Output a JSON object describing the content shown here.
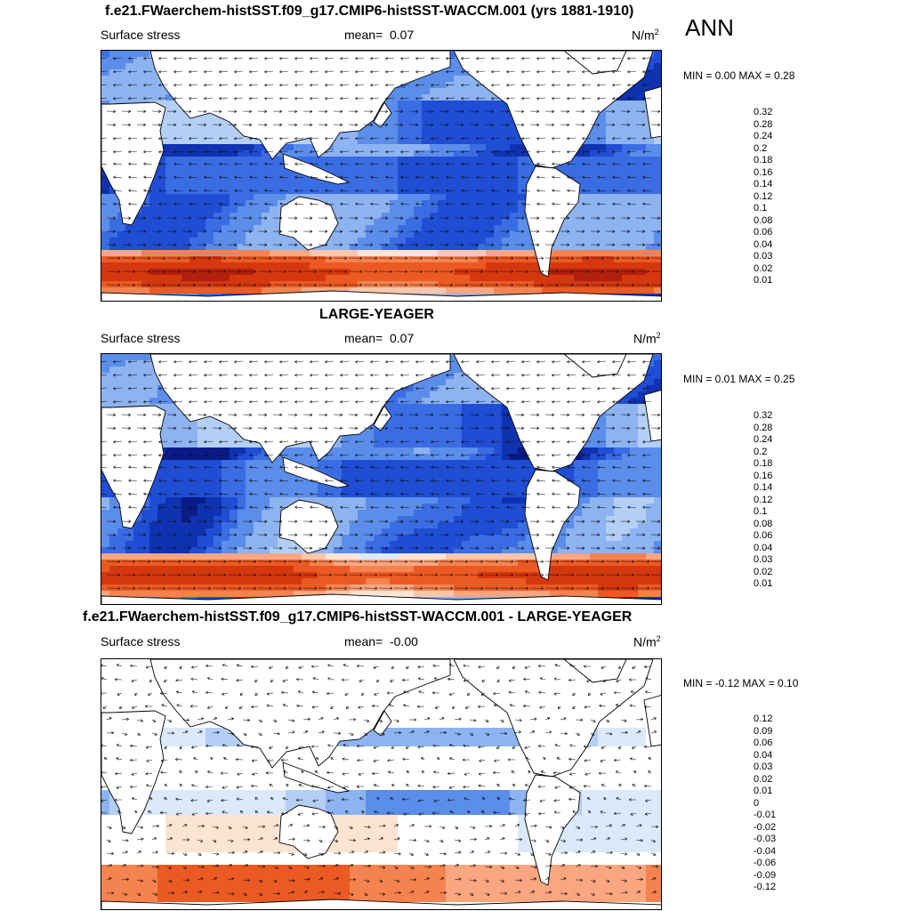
{
  "header": {
    "title": "f.e21.FWaerchem-histSST.f09_g17.CMIP6-histSST-WACCM.001 (yrs 1881-1910)",
    "season": "ANN"
  },
  "panels": [
    {
      "title": "",
      "left": "Surface stress",
      "mean_label": "mean=",
      "mean": "0.07",
      "units": "N/m",
      "units_exp": "2",
      "minmax": "MIN =   0.00 MAX =   0.28",
      "legend": [
        "0.32",
        "0.28",
        "0.24",
        "0.2",
        "0.18",
        "0.16",
        "0.14",
        "0.12",
        "0.1",
        "0.08",
        "0.06",
        "0.04",
        "0.03",
        "0.02",
        "0.01"
      ],
      "legend_colors": [
        "#8b0a0a",
        "#b2200c",
        "#d5380f",
        "#ec5a23",
        "#f5834f",
        "#f9a681",
        "#fcc6aa",
        "#fde4d2",
        "#dbe9fb",
        "#b4cff6",
        "#8db3f1",
        "#5b8deb",
        "#3a6ce4",
        "#1f4dd4",
        "#0f32b0",
        "#0a1a86"
      ],
      "field": "base"
    },
    {
      "title": "LARGE-YEAGER",
      "left": "Surface stress",
      "mean_label": "mean=",
      "mean": "0.07",
      "units": "N/m",
      "units_exp": "2",
      "minmax": "MIN =   0.01 MAX =   0.25",
      "legend": [
        "0.32",
        "0.28",
        "0.24",
        "0.2",
        "0.18",
        "0.16",
        "0.14",
        "0.12",
        "0.1",
        "0.08",
        "0.06",
        "0.04",
        "0.03",
        "0.02",
        "0.01"
      ],
      "legend_colors": [
        "#8b0a0a",
        "#b2200c",
        "#d5380f",
        "#ec5a23",
        "#f5834f",
        "#f9a681",
        "#fcc6aa",
        "#fde4d2",
        "#dbe9fb",
        "#b4cff6",
        "#8db3f1",
        "#5b8deb",
        "#3a6ce4",
        "#1f4dd4",
        "#0f32b0",
        "#0a1a86"
      ],
      "field": "obs"
    },
    {
      "title": "f.e21.FWaerchem-histSST.f09_g17.CMIP6-histSST-WACCM.001 - LARGE-YEAGER",
      "left": "Surface stress",
      "mean_label": "mean=",
      "mean": "-0.00",
      "units": "N/m",
      "units_exp": "2",
      "minmax": "MIN =  -0.12 MAX =   0.10",
      "legend": [
        "0.12",
        "0.09",
        "0.06",
        "0.04",
        "0.03",
        "0.02",
        "0.01",
        "0",
        "-0.01",
        "-0.02",
        "-0.03",
        "-0.04",
        "-0.06",
        "-0.09",
        "-0.12"
      ],
      "legend_colors": [
        "#8b0a0a",
        "#b2200c",
        "#d5380f",
        "#ec5a23",
        "#f5834f",
        "#f9a681",
        "#fcc6aa",
        "#fde4d2",
        "#ffffff",
        "#dbe9fb",
        "#b4cff6",
        "#8db3f1",
        "#5b8deb",
        "#3a6ce4",
        "#1f4dd4",
        "#0a1a86"
      ],
      "field": "diff"
    }
  ]
}
